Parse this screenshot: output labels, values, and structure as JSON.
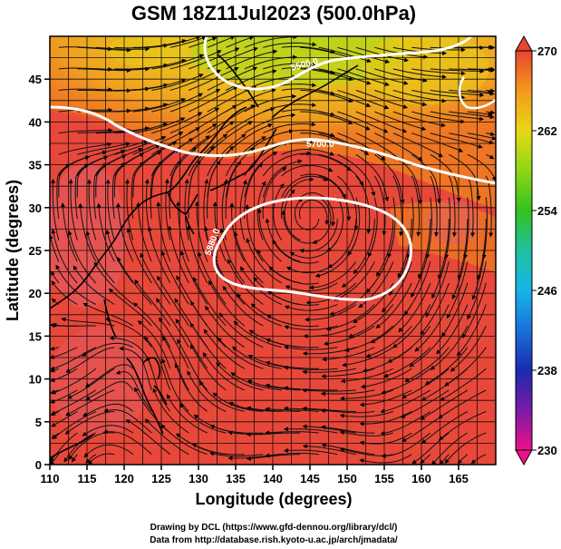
{
  "title": "GSM 18Z11Jul2023 (500.0hPa)",
  "x_axis": {
    "label": "Longitude (degrees)",
    "range": [
      110,
      170
    ],
    "ticks": [
      110,
      115,
      120,
      125,
      130,
      135,
      140,
      145,
      150,
      155,
      160,
      165
    ]
  },
  "y_axis": {
    "label": "Latitude  (degrees)",
    "range": [
      0,
      50
    ],
    "ticks": [
      0,
      5,
      10,
      15,
      20,
      25,
      30,
      35,
      40,
      45
    ]
  },
  "colorbar": {
    "ticks": [
      270,
      262,
      254,
      246,
      238,
      230
    ],
    "range": [
      230,
      270
    ],
    "colors": {
      "c230": "#ee1188",
      "c234": "#7a1aa8",
      "c238": "#1a2ab0",
      "c242": "#1a70d8",
      "c246": "#18b4e8",
      "c250": "#1ec0a0",
      "c254": "#33c21f",
      "c258": "#8fd616",
      "c262": "#e8d814",
      "c266": "#f39a1c",
      "c270": "#e84530"
    }
  },
  "field": {
    "warm_core": "#e8483a",
    "warm_patch": "#e25f68",
    "orange": "#ee7a22",
    "yellow": "#e9c61a",
    "green_yellow": "#b9d41c"
  },
  "contours": [
    {
      "label": "5880.0"
    },
    {
      "label": "5700.0"
    },
    {
      "label": "5500.0"
    }
  ],
  "credits": {
    "line1": "Drawing by DCL (https://www.gfd-dennou.org/library/dcl/)",
    "line2": "Data from http://database.rish.kyoto-u.ac.jp/arch/jmadata/"
  }
}
